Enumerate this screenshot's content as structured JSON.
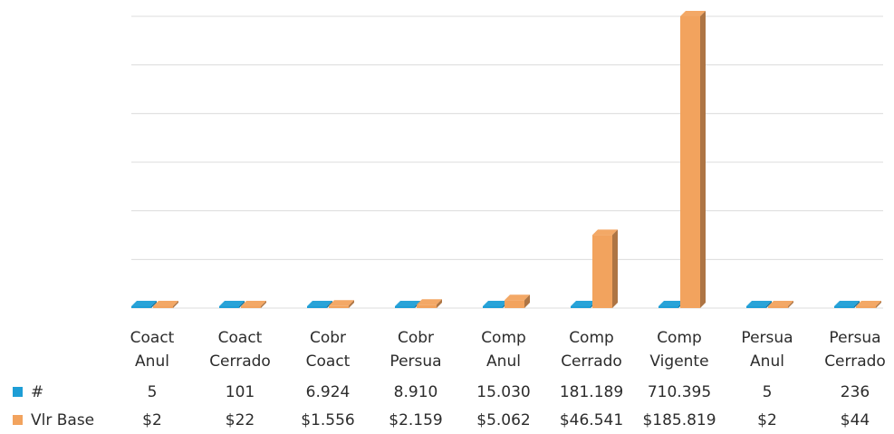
{
  "chart_data": {
    "type": "bar",
    "categories": [
      [
        "Coact",
        "Anul"
      ],
      [
        "Coact",
        "Cerrado"
      ],
      [
        "Cobr",
        "Coact"
      ],
      [
        "Cobr",
        "Persua"
      ],
      [
        "Comp",
        "Anul"
      ],
      [
        "Comp",
        "Cerrado"
      ],
      [
        "Comp",
        "Vigente"
      ],
      [
        "Persua",
        "Anul"
      ],
      [
        "Persua",
        "Cerrado"
      ]
    ],
    "series": [
      {
        "name": "#",
        "color": "#1e9ed6",
        "values": [
          5,
          101,
          6924,
          8910,
          15030,
          181189,
          710395,
          5,
          236
        ],
        "labels": [
          "5",
          "101",
          "6.924",
          "8.910",
          "15.030",
          "181.189",
          "710.395",
          "5",
          "236"
        ]
      },
      {
        "name": "Vlr Base",
        "color": "#f2a35e",
        "values": [
          2,
          22,
          1556,
          2159,
          5062,
          46541,
          185819,
          2,
          44
        ],
        "labels": [
          "$2",
          "$22",
          "$1.556",
          "$2.159",
          "$5.062",
          "$46.541",
          "$185.819",
          "$2",
          "$44"
        ]
      }
    ],
    "grid": true,
    "legend": "table-left"
  }
}
